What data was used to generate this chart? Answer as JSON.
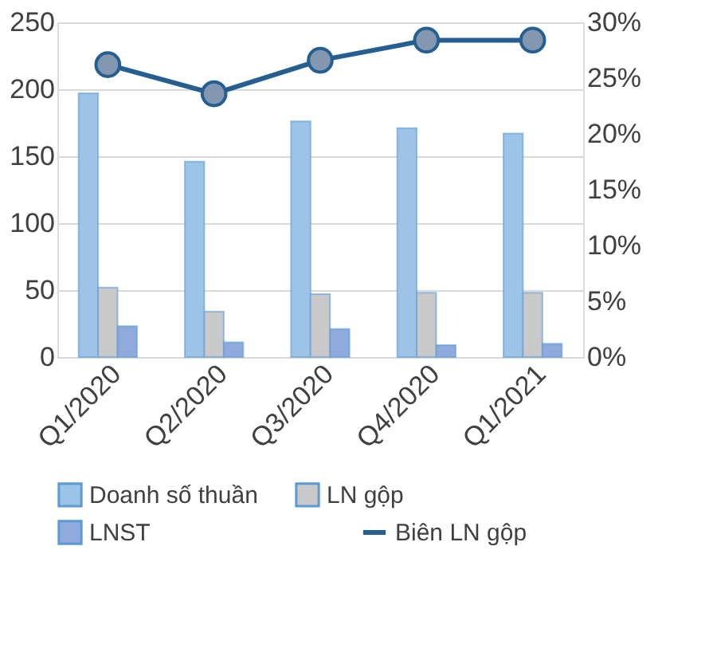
{
  "chart_data": {
    "type": "bar",
    "categories": [
      "Q1/2020",
      "Q2/2020",
      "Q3/2020",
      "Q4/2020",
      "Q1/2021"
    ],
    "series": [
      {
        "name": "Doanh số thuần",
        "color": "#9dc3e6",
        "values": [
          197,
          146,
          176,
          171,
          167
        ]
      },
      {
        "name": "LN gộp",
        "color": "#c9c9c9",
        "values": [
          52,
          34,
          47,
          48,
          48
        ]
      },
      {
        "name": "LNST",
        "color": "#8faadc",
        "values": [
          23,
          11,
          21,
          9,
          10
        ]
      },
      {
        "name": "Biên LN gộp",
        "type": "line",
        "axis": "y2",
        "color": "#255e91",
        "marker": "circle",
        "values": [
          26.2,
          23.6,
          26.6,
          28.4,
          28.4
        ]
      }
    ],
    "ylim": [
      0,
      250
    ],
    "yticks": [
      0,
      50,
      100,
      150,
      200,
      250
    ],
    "y2lim": [
      0,
      30
    ],
    "y2ticks": [
      {
        "value": 0,
        "label": "0%"
      },
      {
        "value": 5,
        "label": "5%"
      },
      {
        "value": 10,
        "label": "10%"
      },
      {
        "value": 15,
        "label": "15%"
      },
      {
        "value": 20,
        "label": "20%"
      },
      {
        "value": 25,
        "label": "25%"
      },
      {
        "value": 30,
        "label": "30%"
      }
    ],
    "grid": "y",
    "legend": "bottom"
  }
}
